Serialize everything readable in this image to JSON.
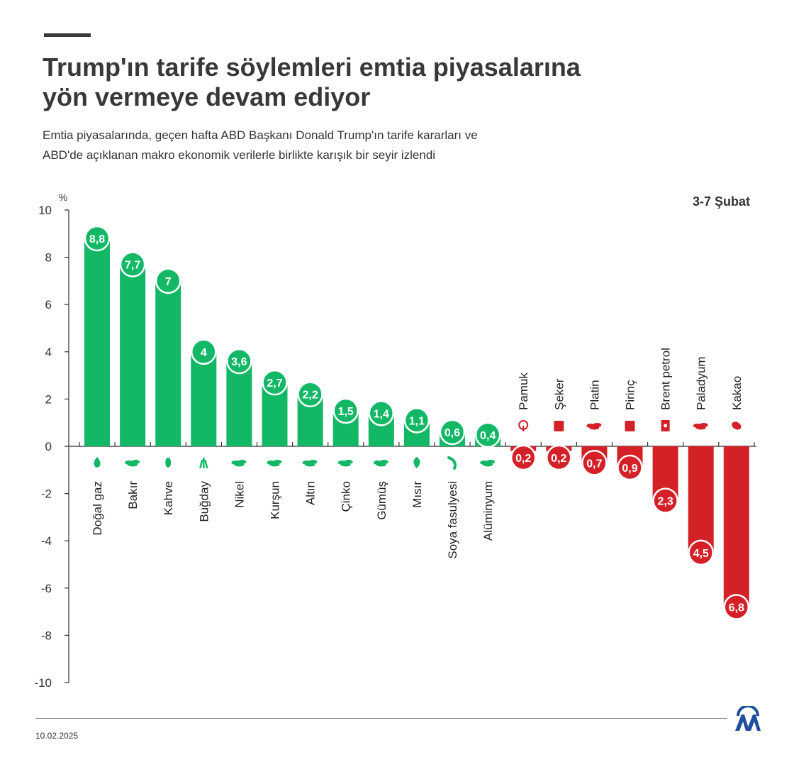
{
  "header": {
    "title_line1": "Trump'ın tarife söylemleri emtia piyasalarına",
    "title_line2": "yön vermeye devam ediyor",
    "subtitle_line1": "Emtia piyasalarında, geçen hafta ABD Başkanı Donald Trump'ın tarife kararları ve",
    "subtitle_line2": "ABD'de açıklanan makro ekonomik verilerle birlikte karışık bir seyir izlendi",
    "period": "3-7 Şubat"
  },
  "footer": {
    "date": "10.02.2025",
    "logo": "AA"
  },
  "colors": {
    "positive": "#12b866",
    "negative": "#d42027",
    "text": "#333333"
  },
  "chart_data": {
    "type": "bar",
    "ylabel": "%",
    "ylim": [
      -10,
      10
    ],
    "yticks": [
      10,
      8,
      6,
      4,
      2,
      0,
      -2,
      -4,
      -6,
      -8,
      -10
    ],
    "grid": false,
    "categories": [
      "Doğal gaz",
      "Bakır",
      "Kahve",
      "Buğday",
      "Nikel",
      "Kurşun",
      "Altın",
      "Çinko",
      "Gümüş",
      "Mısır",
      "Soya fasulyesi",
      "Alüminyum",
      "Pamuk",
      "Şeker",
      "Platin",
      "Pirinç",
      "Brent petrol",
      "Paladyum",
      "Kakao"
    ],
    "values": [
      8.8,
      7.7,
      7,
      4,
      3.6,
      2.7,
      2.2,
      1.5,
      1.4,
      1.1,
      0.6,
      0.4,
      -0.2,
      -0.2,
      -0.7,
      -0.9,
      -2.3,
      -4.5,
      -6.8
    ],
    "data_labels": [
      "8,8",
      "7,7",
      "7",
      "4",
      "3,6",
      "2,7",
      "2,2",
      "1,5",
      "1,4",
      "1,1",
      "0,6",
      "0,4",
      "0,2",
      "0,2",
      "0,7",
      "0,9",
      "2,3",
      "4,5",
      "6,8"
    ],
    "icons": [
      "flame-icon",
      "metal-ore-icon",
      "coffee-bean-icon",
      "wheat-icon",
      "metal-ore-icon",
      "metal-ore-icon",
      "metal-ore-icon",
      "metal-ore-icon",
      "metal-ore-icon",
      "corn-icon",
      "soybean-icon",
      "metal-ore-icon",
      "cotton-icon",
      "sugar-sack-icon",
      "metal-ore-icon",
      "rice-sack-icon",
      "oil-barrel-icon",
      "metal-ore-icon",
      "cocoa-icon"
    ]
  }
}
